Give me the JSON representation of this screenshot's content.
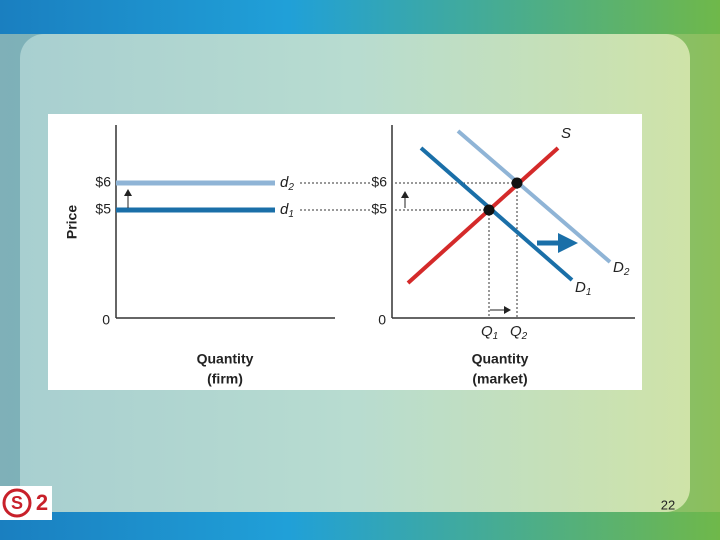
{
  "left_panel": {
    "y_axis_label": "Price",
    "ticks": [
      "$6",
      "$5",
      "0"
    ],
    "curves": [
      {
        "label": "d",
        "sub": "2"
      },
      {
        "label": "d",
        "sub": "1"
      }
    ],
    "x_axis_label": [
      "Quantity",
      "(firm)"
    ]
  },
  "right_panel": {
    "ticks": [
      "$6",
      "$5",
      "0"
    ],
    "supply": "S",
    "demand": [
      {
        "label": "D",
        "sub": "1"
      },
      {
        "label": "D",
        "sub": "2"
      }
    ],
    "quantities": [
      {
        "label": "Q",
        "sub": "1"
      },
      {
        "label": "Q",
        "sub": "2"
      }
    ],
    "x_axis_label": [
      "Quantity",
      "(market)"
    ]
  },
  "logo": {
    "letter": "S",
    "number": "2"
  },
  "page_number": "22"
}
